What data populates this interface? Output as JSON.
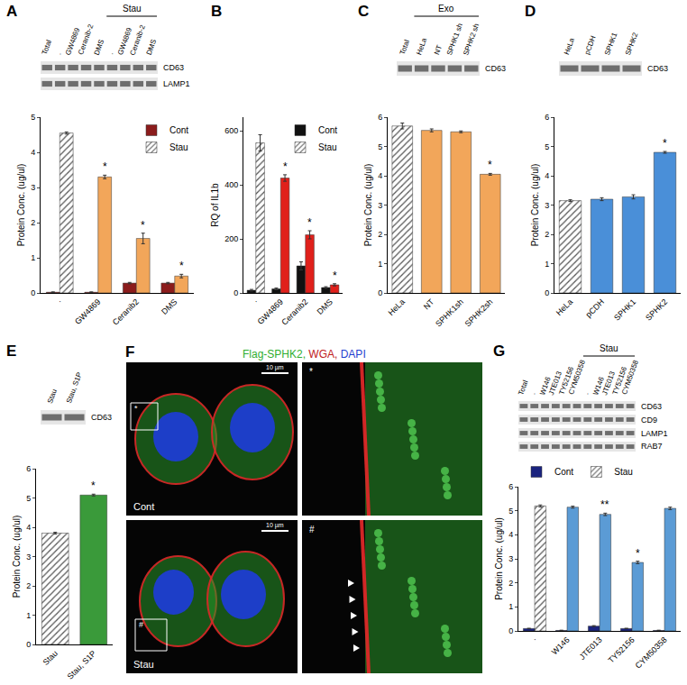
{
  "chart_data": [
    {
      "panel": "A",
      "type": "bar",
      "categories": [
        "·",
        "GW4869",
        "Ceranib2",
        "DMS"
      ],
      "y_label": "Protein Conc. (ug/ul)",
      "ylim": [
        0,
        5
      ],
      "yticks": [
        0,
        1,
        2,
        3,
        4,
        5
      ],
      "grid": false,
      "legend": "upper right",
      "series": [
        {
          "name": "Cont",
          "color": "#8b1c1c",
          "values": [
            0.02,
            0.02,
            0.28,
            0.28
          ],
          "errors": [
            0.01,
            0.01,
            0.02,
            0.02
          ]
        },
        {
          "name": "Stau",
          "color": "#f2a65a",
          "values": [
            4.55,
            3.3,
            1.55,
            0.48
          ],
          "errors": [
            0.03,
            0.05,
            0.15,
            0.05
          ],
          "marks": [
            null,
            "*",
            "*",
            "*"
          ]
        }
      ],
      "blot": {
        "columns": [
          "Total",
          "·",
          "GW4869",
          "Ceranib-2",
          "DMS"
        ],
        "group": {
          "label": "Stau",
          "columns": [
            "·",
            "GW4869",
            "Ceranib-2",
            "DMS"
          ]
        },
        "rows": [
          "CD63",
          "LAMP1"
        ]
      }
    },
    {
      "panel": "B",
      "type": "bar",
      "categories": [
        "·",
        "GW4869",
        "Ceranib2",
        "DMS"
      ],
      "y_label": "RQ of IL1b",
      "ylim": [
        0,
        650
      ],
      "yticks": [
        0,
        200,
        400,
        600
      ],
      "grid": false,
      "legend": "upper right",
      "series": [
        {
          "name": "Cont",
          "color": "#111111",
          "values": [
            10,
            15,
            100,
            20
          ],
          "errors": [
            3,
            3,
            15,
            3
          ]
        },
        {
          "name": "Stau",
          "color": "#e0201b",
          "values": [
            555,
            425,
            215,
            30
          ],
          "errors": [
            30,
            12,
            15,
            4
          ],
          "marks": [
            null,
            "*",
            "*",
            "*"
          ]
        }
      ]
    },
    {
      "panel": "C",
      "type": "bar",
      "categories": [
        "HeLa",
        "NT",
        "SPHK1sh",
        "SPHK2sh"
      ],
      "y_label": "Protein Conc. (ug/ul)",
      "ylim": [
        0,
        6
      ],
      "yticks": [
        0,
        1,
        2,
        3,
        4,
        5,
        6
      ],
      "grid": false,
      "color": "#f2a65a",
      "values": [
        5.7,
        5.55,
        5.5,
        4.05
      ],
      "errors": [
        0.1,
        0.05,
        0.03,
        0.03
      ],
      "marks": [
        null,
        null,
        null,
        "*"
      ],
      "blot": {
        "columns": [
          "Total"
        ],
        "group": {
          "label": "Exo",
          "columns": [
            "HeLa",
            "NT",
            "SPHK1 sh",
            "SPHK2 sh"
          ]
        },
        "rows": [
          "CD63"
        ]
      }
    },
    {
      "panel": "D",
      "type": "bar",
      "categories": [
        "HeLa",
        "pCDH",
        "SPHK1",
        "SPHK2"
      ],
      "y_label": "Protein Conc. (ug/ul)",
      "ylim": [
        0,
        6
      ],
      "yticks": [
        0,
        1,
        2,
        3,
        4,
        5,
        6
      ],
      "grid": false,
      "color": "#4a8fd8",
      "values": [
        3.15,
        3.2,
        3.28,
        4.8
      ],
      "errors": [
        0.03,
        0.05,
        0.07,
        0.03
      ],
      "marks": [
        null,
        null,
        null,
        "*"
      ],
      "blot": {
        "columns": [
          "HeLa",
          "pCDH",
          "SPHK1",
          "SPHK2"
        ],
        "rows": [
          "CD63"
        ]
      }
    },
    {
      "panel": "E",
      "type": "bar",
      "categories": [
        "Stau",
        "Stau, S1P"
      ],
      "y_label": "Protein Conc. (ug/ul)",
      "ylim": [
        0,
        6
      ],
      "yticks": [
        0,
        1,
        2,
        3,
        4,
        5,
        6
      ],
      "grid": false,
      "color": "#3a9a3a",
      "values": [
        3.8,
        5.1
      ],
      "errors": [
        0.03,
        0.03
      ],
      "marks": [
        null,
        "*"
      ],
      "blot": {
        "columns": [
          "Stau",
          "Stau, S1P"
        ],
        "rows": [
          "CD63"
        ]
      }
    },
    {
      "panel": "G",
      "type": "bar",
      "categories": [
        "·",
        "W146",
        "JTE013",
        "TY52156",
        "CYM50358"
      ],
      "y_label": "Protein Conc. (ug/ul)",
      "ylim": [
        0,
        6
      ],
      "yticks": [
        0,
        1,
        2,
        3,
        4,
        5,
        6
      ],
      "grid": false,
      "legend": "top",
      "series": [
        {
          "name": "Cont",
          "color": "#1a237e",
          "values": [
            0.1,
            0.02,
            0.2,
            0.1,
            0.02
          ],
          "errors": [
            0.01,
            0.01,
            0.02,
            0.01,
            0.01
          ]
        },
        {
          "name": "Stau",
          "color": "#5b9bd5",
          "values": [
            5.2,
            5.15,
            4.85,
            2.85,
            5.1
          ],
          "errors": [
            0.04,
            0.04,
            0.05,
            0.05,
            0.05
          ],
          "marks": [
            null,
            null,
            "**",
            "*",
            null
          ]
        }
      ],
      "blot": {
        "columns": [
          "Total",
          "·",
          "W146",
          "JTE013",
          "TY52156",
          "CYM50358"
        ],
        "group": {
          "label": "Stau",
          "columns": [
            "·",
            "W146",
            "JTE013",
            "TY52156",
            "CYM50358"
          ]
        },
        "rows": [
          "CD63",
          "CD9",
          "LAMP1",
          "RAB7"
        ]
      }
    }
  ],
  "microscopy": {
    "panel": "F",
    "title_parts": [
      {
        "text": "Flag-SPHK2, ",
        "color": "#2fae2f"
      },
      {
        "text": "WGA, ",
        "color": "#c0201b"
      },
      {
        "text": "DAPI",
        "color": "#1f3fd0"
      }
    ],
    "conditions": [
      "Cont",
      "Stau"
    ],
    "inset_marks": [
      "*",
      "#"
    ],
    "scale_bar": "10 µm"
  }
}
